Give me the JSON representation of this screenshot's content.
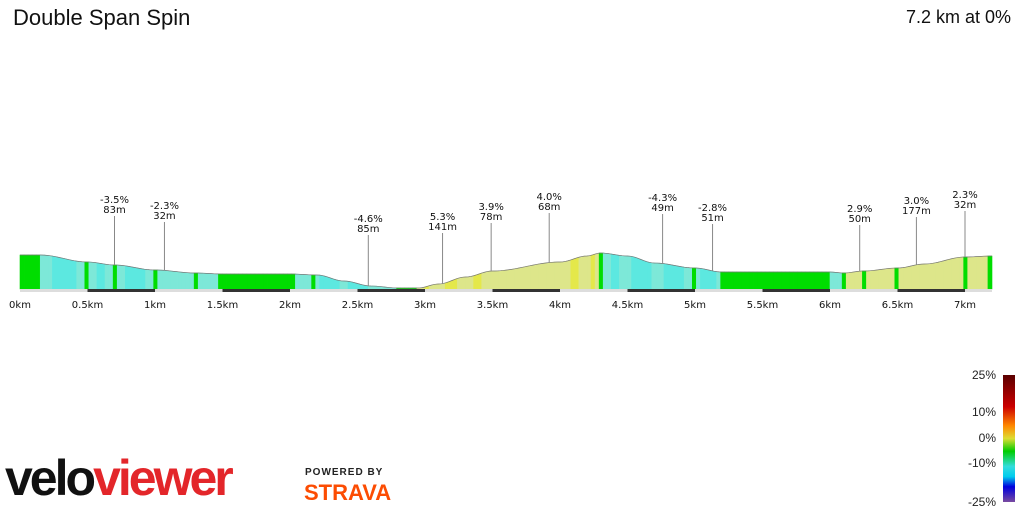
{
  "header": {
    "title": "Double Span Spin",
    "summary": "7.2 km at 0%"
  },
  "chart_data": {
    "type": "area",
    "title": "Double Span Spin",
    "xlabel": "",
    "ylabel": "",
    "x_unit": "km",
    "xlim": [
      0,
      7.2
    ],
    "x_ticks": [
      "0km",
      "0.5km",
      "1km",
      "1.5km",
      "2km",
      "2.5km",
      "3km",
      "3.5km",
      "4km",
      "4.5km",
      "5km",
      "5.5km",
      "6km",
      "6.5km",
      "7km"
    ],
    "profile_relative_elevation": [
      [
        0,
        34
      ],
      [
        0.15,
        34
      ],
      [
        0.5,
        27
      ],
      [
        0.7,
        24
      ],
      [
        1.0,
        19
      ],
      [
        1.3,
        16
      ],
      [
        1.5,
        15
      ],
      [
        2.0,
        15
      ],
      [
        2.2,
        14
      ],
      [
        2.4,
        8
      ],
      [
        2.6,
        3
      ],
      [
        2.8,
        1
      ],
      [
        2.95,
        1
      ],
      [
        3.1,
        5
      ],
      [
        3.3,
        12
      ],
      [
        3.5,
        18
      ],
      [
        4.0,
        27
      ],
      [
        4.2,
        33
      ],
      [
        4.3,
        36
      ],
      [
        4.5,
        33
      ],
      [
        4.7,
        26
      ],
      [
        5.0,
        21
      ],
      [
        5.2,
        17
      ],
      [
        5.5,
        17
      ],
      [
        6.0,
        17
      ],
      [
        6.1,
        16
      ],
      [
        6.25,
        18
      ],
      [
        6.5,
        21
      ],
      [
        6.7,
        25
      ],
      [
        7.0,
        32
      ],
      [
        7.2,
        33
      ]
    ],
    "annotations": [
      {
        "km": 0.7,
        "grade": "-3.5%",
        "length": "83m"
      },
      {
        "km": 1.07,
        "grade": "-2.3%",
        "length": "32m"
      },
      {
        "km": 2.58,
        "grade": "-4.6%",
        "length": "85m"
      },
      {
        "km": 3.13,
        "grade": "5.3%",
        "length": "141m"
      },
      {
        "km": 3.49,
        "grade": "3.9%",
        "length": "78m"
      },
      {
        "km": 3.92,
        "grade": "4.0%",
        "length": "68m"
      },
      {
        "km": 4.76,
        "grade": "-4.3%",
        "length": "49m"
      },
      {
        "km": 5.13,
        "grade": "-2.8%",
        "length": "51m"
      },
      {
        "km": 6.22,
        "grade": "2.9%",
        "length": "50m"
      },
      {
        "km": 6.64,
        "grade": "3.0%",
        "length": "177m"
      },
      {
        "km": 7.0,
        "grade": "2.3%",
        "length": "32m"
      }
    ],
    "legend": {
      "labels": [
        "25%",
        "10%",
        "0%",
        "-10%",
        "-25%"
      ],
      "colors": [
        "#5a0000",
        "#cc0000",
        "#ff8800",
        "#dddd33",
        "#00cc00",
        "#33dddd",
        "#00ccee",
        "#0000dd",
        "#7a4aa0"
      ]
    }
  },
  "branding": {
    "logo_a": "velo",
    "logo_b": "viewer",
    "powered": "POWERED BY",
    "strava": "STRAVA"
  }
}
